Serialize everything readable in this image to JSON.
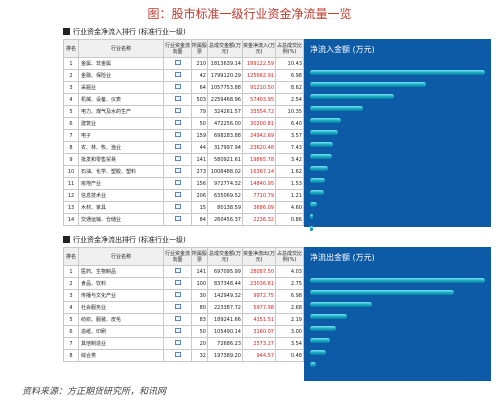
{
  "title": "图：股市标准一级行业资金净流量一览",
  "inflow": {
    "heading": "行业资金净流入排行 (标准行业一级)",
    "columns": [
      "排名",
      "行业名称",
      "行业资金流向图",
      "所属股票",
      "总成交金额(万元)",
      "资金净流入(万元)",
      "占总成交比例(%)"
    ],
    "chart_title": "净流入金额 (万元)",
    "rows": [
      [
        "1",
        "金属、非金属",
        "210",
        "1813639.14",
        "189122.59",
        "10.43"
      ],
      [
        "2",
        "金融、保险业",
        "42",
        "1799120.29",
        "125662.91",
        "6.98"
      ],
      [
        "3",
        "采掘业",
        "64",
        "1057753.88",
        "91210.50",
        "8.62"
      ],
      [
        "4",
        "机械、设备、仪表",
        "503",
        "2259468.96",
        "57403.95",
        "2.54"
      ],
      [
        "5",
        "电力、煤气及水的生产",
        "79",
        "324261.57",
        "33554.72",
        "10.35"
      ],
      [
        "6",
        "建筑业",
        "50",
        "472256.00",
        "30200.81",
        "6.40"
      ],
      [
        "7",
        "电子",
        "159",
        "698283.88",
        "24942.69",
        "3.57"
      ],
      [
        "8",
        "农、林、牧、渔业",
        "44",
        "317997.94",
        "23620.48",
        "7.43"
      ],
      [
        "9",
        "批发和零售贸易",
        "141",
        "580921.61",
        "19865.78",
        "3.42"
      ],
      [
        "10",
        "石油、化学、塑胶、塑料",
        "273",
        "1008488.02",
        "16367.14",
        "1.62"
      ],
      [
        "11",
        "房地产业",
        "156",
        "972774.32",
        "14840.95",
        "1.53"
      ],
      [
        "12",
        "信息技术业",
        "206",
        "635069.52",
        "7710.79",
        "1.21"
      ],
      [
        "13",
        "木材、家具",
        "15",
        "80138.59",
        "3686.09",
        "4.60"
      ],
      [
        "14",
        "交通运输、仓储业",
        "84",
        "260456.37",
        "2236.32",
        "0.86"
      ]
    ]
  },
  "outflow": {
    "heading": "行业资金净流出排行 (标准行业一级)",
    "columns": [
      "排名",
      "行业名称",
      "行业资金流向图",
      "所属股票",
      "总成交金额(万元)",
      "资金净流出(万元)",
      "占总成交比例(%)"
    ],
    "chart_title": "净流出金额 (万元)",
    "rows": [
      [
        "1",
        "医药、生物制品",
        "141",
        "697095.99",
        "28087.50",
        "4.03"
      ],
      [
        "2",
        "食品、饮料",
        "100",
        "837348.44",
        "23036.61",
        "2.75"
      ],
      [
        "3",
        "传播与文化产业",
        "30",
        "142949.32",
        "9972.75",
        "6.98"
      ],
      [
        "4",
        "社会服务业",
        "80",
        "223387.72",
        "5977.98",
        "2.68"
      ],
      [
        "5",
        "纺织、服装、皮毛",
        "83",
        "189241.66",
        "4151.51",
        "2.19"
      ],
      [
        "6",
        "造纸、印刷",
        "50",
        "105490.14",
        "3160.07",
        "3.00"
      ],
      [
        "7",
        "其他制造业",
        "20",
        "72686.23",
        "2573.27",
        "3.54"
      ],
      [
        "8",
        "综合类",
        "32",
        "197389.20",
        "944.57",
        "0.48"
      ]
    ]
  },
  "source": "资料来源：方正期货研究所，和讯网"
}
